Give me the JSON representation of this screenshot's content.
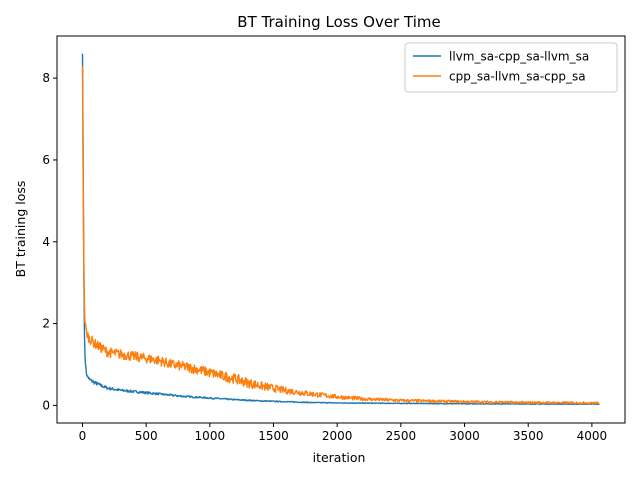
{
  "chart_data": {
    "type": "line",
    "title": "BT Training Loss Over Time",
    "xlabel": "iteration",
    "ylabel": "BT training loss",
    "xlim": [
      -200,
      4260
    ],
    "ylim": [
      -0.43,
      9.03
    ],
    "xticks": [
      0,
      500,
      1000,
      1500,
      2000,
      2500,
      3000,
      3500,
      4000
    ],
    "yticks": [
      0,
      2,
      4,
      6,
      8
    ],
    "grid": false,
    "legend_position": "top-right",
    "series": [
      {
        "name": "llvm_sa-cpp_sa-llvm_sa",
        "color": "#1f77b4",
        "noise": 0.045,
        "x": [
          0,
          5,
          10,
          15,
          20,
          30,
          40,
          60,
          100,
          150,
          200,
          300,
          400,
          500,
          600,
          700,
          800,
          900,
          1000,
          1200,
          1400,
          1600,
          1800,
          2000,
          2500,
          3000,
          3500,
          4060
        ],
        "y": [
          8.6,
          6.2,
          3.5,
          1.8,
          1.2,
          0.8,
          0.7,
          0.62,
          0.55,
          0.48,
          0.42,
          0.37,
          0.34,
          0.31,
          0.28,
          0.25,
          0.22,
          0.2,
          0.18,
          0.14,
          0.11,
          0.09,
          0.07,
          0.06,
          0.05,
          0.04,
          0.035,
          0.03
        ]
      },
      {
        "name": "cpp_sa-llvm_sa-cpp_sa",
        "color": "#ff7f0e",
        "noise": 0.12,
        "x": [
          0,
          5,
          10,
          15,
          20,
          30,
          50,
          100,
          150,
          200,
          300,
          400,
          500,
          600,
          700,
          800,
          900,
          1000,
          1100,
          1200,
          1300,
          1400,
          1500,
          1600,
          1800,
          2000,
          2200,
          2500,
          3000,
          3500,
          4060
        ],
        "y": [
          8.3,
          5.5,
          3.6,
          2.5,
          2.0,
          1.8,
          1.65,
          1.5,
          1.4,
          1.3,
          1.25,
          1.2,
          1.15,
          1.1,
          1.0,
          0.95,
          0.88,
          0.8,
          0.72,
          0.65,
          0.55,
          0.48,
          0.42,
          0.36,
          0.28,
          0.21,
          0.16,
          0.12,
          0.09,
          0.07,
          0.06
        ]
      }
    ]
  }
}
